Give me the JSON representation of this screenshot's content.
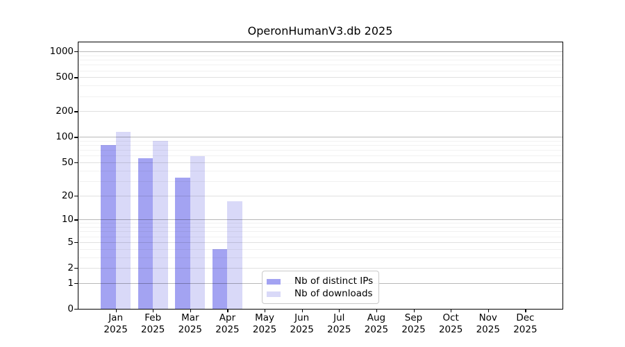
{
  "chart_data": {
    "type": "bar",
    "title": "OperonHumanV3.db 2025",
    "categories": [
      "Jan",
      "Feb",
      "Mar",
      "Apr",
      "May",
      "Jun",
      "Jul",
      "Aug",
      "Sep",
      "Oct",
      "Nov",
      "Dec"
    ],
    "year_label": "2025",
    "series": [
      {
        "name": "Nb of distinct IPs",
        "color": "#a3a3f2",
        "values": [
          80,
          56,
          33,
          4,
          0,
          0,
          0,
          0,
          0,
          0,
          0,
          0
        ]
      },
      {
        "name": "Nb of downloads",
        "color": "#d9d9f8",
        "values": [
          115,
          90,
          59,
          17,
          0,
          0,
          0,
          0,
          0,
          0,
          0,
          0
        ]
      }
    ],
    "yscale": "log1p",
    "ylim": [
      0,
      1280
    ],
    "yticks": [
      0,
      1,
      2,
      5,
      10,
      20,
      50,
      100,
      200,
      500,
      1000
    ],
    "yticks_mid": [
      2,
      5,
      20,
      50,
      200,
      500
    ],
    "yticks_decade": [
      1,
      10,
      100,
      1000
    ],
    "yticks_minor": [
      3,
      4,
      6,
      7,
      8,
      9,
      30,
      40,
      60,
      70,
      80,
      90,
      300,
      400,
      600,
      700,
      800,
      900
    ],
    "grid": true,
    "legend_position": "lower center",
    "xlabel": "",
    "ylabel": ""
  }
}
